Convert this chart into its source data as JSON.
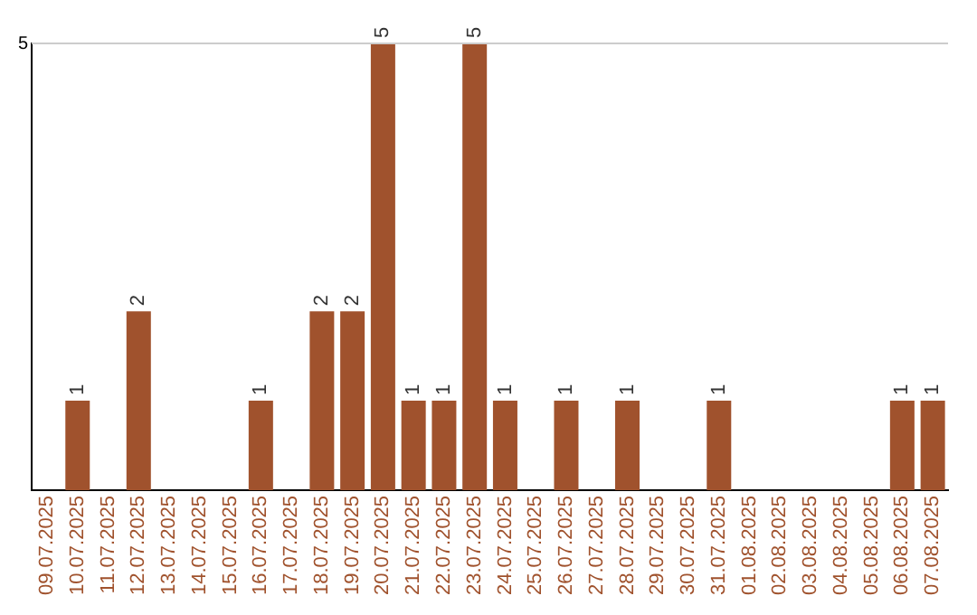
{
  "chart_data": {
    "type": "bar",
    "categories": [
      "09.07.2025",
      "10.07.2025",
      "11.07.2025",
      "12.07.2025",
      "13.07.2025",
      "14.07.2025",
      "15.07.2025",
      "16.07.2025",
      "17.07.2025",
      "18.07.2025",
      "19.07.2025",
      "20.07.2025",
      "21.07.2025",
      "22.07.2025",
      "23.07.2025",
      "24.07.2025",
      "25.07.2025",
      "26.07.2025",
      "27.07.2025",
      "28.07.2025",
      "29.07.2025",
      "30.07.2025",
      "31.07.2025",
      "01.08.2025",
      "02.08.2025",
      "03.08.2025",
      "04.08.2025",
      "05.08.2025",
      "06.08.2025",
      "07.08.2025"
    ],
    "values": [
      0,
      1,
      0,
      2,
      0,
      0,
      0,
      1,
      0,
      2,
      2,
      5,
      1,
      1,
      5,
      1,
      0,
      1,
      0,
      1,
      0,
      0,
      1,
      0,
      0,
      0,
      0,
      0,
      1,
      1
    ],
    "value_labels": [
      null,
      "1",
      null,
      "2",
      null,
      null,
      null,
      "1",
      null,
      "2",
      "2",
      "5",
      "1",
      "1",
      "5",
      "1",
      null,
      "1",
      null,
      "1",
      null,
      null,
      "1",
      null,
      null,
      null,
      null,
      null,
      "1",
      "1"
    ],
    "color": "#a0522d",
    "ylim": [
      0,
      5
    ],
    "yticks": [
      5
    ],
    "ref_lines": [
      {
        "axis": "y",
        "value": 5,
        "color": "#cccccc"
      }
    ],
    "legend": false
  }
}
